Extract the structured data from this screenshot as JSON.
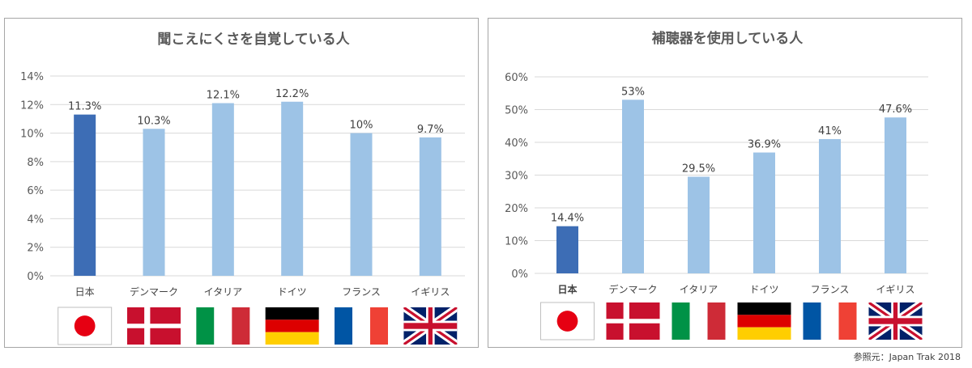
{
  "chart_data": [
    {
      "type": "bar",
      "title": "聞こえにくさを自覚している人",
      "categories": [
        "日本",
        "デンマーク",
        "イタリア",
        "ドイツ",
        "フランス",
        "イギリス"
      ],
      "values": [
        11.3,
        10.3,
        12.1,
        12.2,
        10,
        9.7
      ],
      "data_labels": [
        "11.3%",
        "10.3%",
        "12.1%",
        "12.2%",
        "10%",
        "9.7%"
      ],
      "yticks": [
        "0%",
        "2%",
        "4%",
        "6%",
        "8%",
        "10%",
        "12%",
        "14%"
      ],
      "ylim": [
        0,
        14
      ],
      "grid": true,
      "highlight_category": "日本",
      "colors": {
        "highlight": "#3d6db5",
        "default": "#9dc3e6"
      }
    },
    {
      "type": "bar",
      "title": "補聴器を使用している人",
      "categories": [
        "日本",
        "デンマーク",
        "イタリア",
        "ドイツ",
        "フランス",
        "イギリス"
      ],
      "values": [
        14.4,
        53,
        29.5,
        36.9,
        41,
        47.6
      ],
      "data_labels": [
        "14.4%",
        "53%",
        "29.5%",
        "36.9%",
        "41%",
        "47.6%"
      ],
      "yticks": [
        "0%",
        "10%",
        "20%",
        "30%",
        "40%",
        "50%",
        "60%"
      ],
      "ylim": [
        0,
        60
      ],
      "grid": true,
      "highlight_category": "日本",
      "colors": {
        "highlight": "#3d6db5",
        "default": "#9dc3e6"
      }
    }
  ],
  "flags": [
    "japan-flag-icon",
    "denmark-flag-icon",
    "italy-flag-icon",
    "germany-flag-icon",
    "france-flag-icon",
    "uk-flag-icon"
  ],
  "source": "参照元：Japan Trak 2018"
}
